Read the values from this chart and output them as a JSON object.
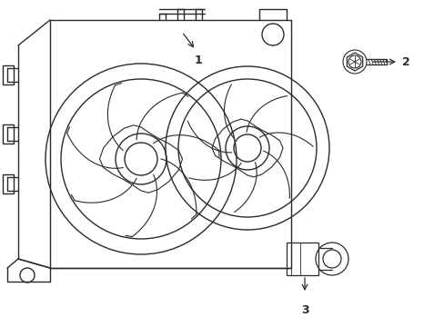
{
  "bg_color": "#ffffff",
  "line_color": "#2a2a2a",
  "line_width": 1.0,
  "label1_text": "1",
  "label2_text": "2",
  "label3_text": "3",
  "font_size_labels": 9,
  "fig_w": 4.89,
  "fig_h": 3.6,
  "dpi": 100
}
